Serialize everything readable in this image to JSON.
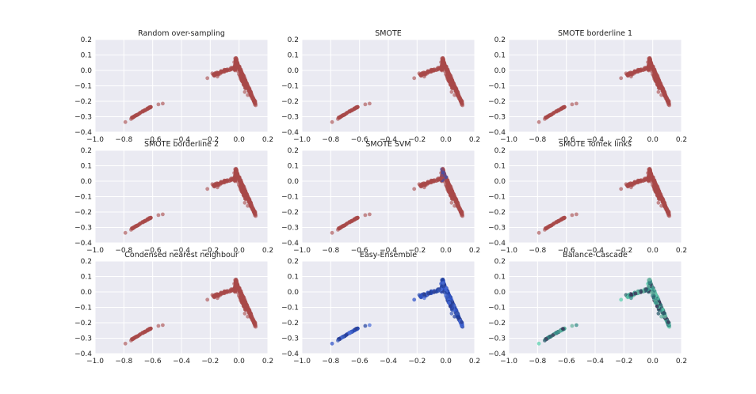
{
  "figure": {
    "background": "#ffffff",
    "axes_facecolor": "#eaeaf2",
    "grid_color": "#ffffff"
  },
  "chart_data": [
    {
      "type": "scatter",
      "title": "Random over-sampling",
      "xlim": [
        -1.0,
        0.2
      ],
      "ylim": [
        -0.4,
        0.2
      ],
      "xticks": [
        "−1.0",
        "−0.8",
        "−0.6",
        "−0.4",
        "−0.2",
        "0.0",
        "0.2"
      ],
      "yticks": [
        "−0.4",
        "−0.3",
        "−0.2",
        "−0.1",
        "0.0",
        "0.1",
        "0.2"
      ],
      "grid": true,
      "series": [
        {
          "style": "single",
          "color": "#a94a4a"
        }
      ]
    },
    {
      "type": "scatter",
      "title": "SMOTE",
      "xlim": [
        -1.0,
        0.2
      ],
      "ylim": [
        -0.4,
        0.2
      ],
      "xticks": [
        "−1.0",
        "−0.8",
        "−0.6",
        "−0.4",
        "−0.2",
        "0.0",
        "0.2"
      ],
      "yticks": [
        "−0.4",
        "−0.3",
        "−0.2",
        "−0.1",
        "0.0",
        "0.1",
        "0.2"
      ],
      "grid": true,
      "series": [
        {
          "style": "single",
          "color": "#a94a4a"
        }
      ]
    },
    {
      "type": "scatter",
      "title": "SMOTE borderline 1",
      "xlim": [
        -1.0,
        0.2
      ],
      "ylim": [
        -0.4,
        0.2
      ],
      "xticks": [
        "−1.0",
        "−0.8",
        "−0.6",
        "−0.4",
        "−0.2",
        "0.0",
        "0.2"
      ],
      "yticks": [
        "−0.4",
        "−0.3",
        "−0.2",
        "−0.1",
        "0.0",
        "0.1",
        "0.2"
      ],
      "grid": true,
      "series": [
        {
          "style": "single",
          "color": "#a94a4a"
        }
      ]
    },
    {
      "type": "scatter",
      "title": "SMOTE borderline 2",
      "xlim": [
        -1.0,
        0.2
      ],
      "ylim": [
        -0.4,
        0.2
      ],
      "xticks": [
        "−1.0",
        "−0.8",
        "−0.6",
        "−0.4",
        "−0.2",
        "0.0",
        "0.2"
      ],
      "yticks": [
        "−0.4",
        "−0.3",
        "−0.2",
        "−0.1",
        "0.0",
        "0.1",
        "0.2"
      ],
      "grid": true,
      "series": [
        {
          "style": "single",
          "color": "#a94a4a"
        }
      ]
    },
    {
      "type": "scatter",
      "title": "SMOTE SVM",
      "xlim": [
        -1.0,
        0.2
      ],
      "ylim": [
        -0.4,
        0.2
      ],
      "xticks": [
        "−1.0",
        "−0.8",
        "−0.6",
        "−0.4",
        "−0.2",
        "0.0",
        "0.2"
      ],
      "yticks": [
        "−0.4",
        "−0.3",
        "−0.2",
        "−0.1",
        "0.0",
        "0.1",
        "0.2"
      ],
      "grid": true,
      "series": [
        {
          "style": "single",
          "color": "#a94a4a",
          "accent": "#3a4fb0"
        }
      ]
    },
    {
      "type": "scatter",
      "title": "SMOTE Tomek links",
      "xlim": [
        -1.0,
        0.2
      ],
      "ylim": [
        -0.4,
        0.2
      ],
      "xticks": [
        "−1.0",
        "−0.8",
        "−0.6",
        "−0.4",
        "−0.2",
        "0.0",
        "0.2"
      ],
      "yticks": [
        "−0.4",
        "−0.3",
        "−0.2",
        "−0.1",
        "0.0",
        "0.1",
        "0.2"
      ],
      "grid": true,
      "series": [
        {
          "style": "single",
          "color": "#a94a4a"
        }
      ]
    },
    {
      "type": "scatter",
      "title": "Condensed nearest neighbour",
      "xlim": [
        -1.0,
        0.2
      ],
      "ylim": [
        -0.4,
        0.2
      ],
      "xticks": [
        "−1.0",
        "−0.8",
        "−0.6",
        "−0.4",
        "−0.2",
        "0.0",
        "0.2"
      ],
      "yticks": [
        "−0.4",
        "−0.3",
        "−0.2",
        "−0.1",
        "0.0",
        "0.1",
        "0.2"
      ],
      "grid": true,
      "series": [
        {
          "style": "single",
          "color": "#a94a4a"
        }
      ]
    },
    {
      "type": "scatter",
      "title": "Easy-Ensemble",
      "xlim": [
        -1.0,
        0.2
      ],
      "ylim": [
        -0.4,
        0.2
      ],
      "xticks": [
        "−1.0",
        "−0.8",
        "−0.6",
        "−0.4",
        "−0.2",
        "0.0",
        "0.2"
      ],
      "yticks": [
        "−0.4",
        "−0.3",
        "−0.2",
        "−0.1",
        "0.0",
        "0.1",
        "0.2"
      ],
      "grid": true,
      "series": [
        {
          "style": "blue",
          "colors": [
            "#2b4fc8",
            "#3b5ab6",
            "#1f3f9e",
            "#4a6ed8",
            "#2a3a8a"
          ]
        }
      ]
    },
    {
      "type": "scatter",
      "title": "Balance-Cascade",
      "xlim": [
        -1.0,
        0.2
      ],
      "ylim": [
        -0.4,
        0.2
      ],
      "xticks": [
        "−1.0",
        "−0.8",
        "−0.6",
        "−0.4",
        "−0.2",
        "0.0",
        "0.2"
      ],
      "yticks": [
        "−0.4",
        "−0.3",
        "−0.2",
        "−0.1",
        "0.0",
        "0.1",
        "0.2"
      ],
      "grid": true,
      "series": [
        {
          "style": "cascade",
          "colors": [
            "#5fd3b0",
            "#3a8f8a",
            "#2d5f6e",
            "#3b2f55",
            "#6ab4a0"
          ]
        }
      ]
    }
  ]
}
